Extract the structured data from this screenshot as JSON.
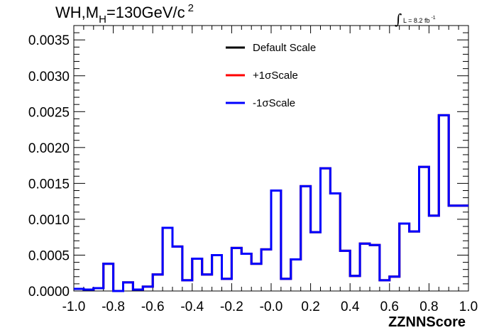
{
  "chart_data": {
    "type": "line",
    "title": {
      "main": "WH,M",
      "sub": "H",
      "rest": "=130GeV/c",
      "sup": "2"
    },
    "luminosity": {
      "symbol": "∫",
      "text": "L = 8.2 fb",
      "sup": "-1"
    },
    "xlabel": "ZZNNScore",
    "ylabel": "",
    "xlim": [
      -1.0,
      1.0
    ],
    "ylim": [
      0,
      0.0037
    ],
    "x_ticks": [
      "-1.0",
      "-0.8",
      "-0.6",
      "-0.4",
      "-0.2",
      "-0.0",
      "0.2",
      "0.4",
      "0.6",
      "0.8",
      "1.0"
    ],
    "y_ticks": [
      "0.0000",
      "0.0005",
      "0.0010",
      "0.0015",
      "0.0020",
      "0.0025",
      "0.0030",
      "0.0035"
    ],
    "bin_edges": [
      -1.0,
      -0.95,
      -0.9,
      -0.85,
      -0.8,
      -0.75,
      -0.7,
      -0.65,
      -0.6,
      -0.55,
      -0.5,
      -0.45,
      -0.4,
      -0.35,
      -0.3,
      -0.25,
      -0.2,
      -0.15,
      -0.1,
      -0.05,
      0.0,
      0.05,
      0.1,
      0.15,
      0.2,
      0.25,
      0.3,
      0.35,
      0.4,
      0.45,
      0.5,
      0.55,
      0.6,
      0.65,
      0.7,
      0.75,
      0.8,
      0.85,
      0.9,
      0.95,
      1.0
    ],
    "series": [
      {
        "name": "Default Scale",
        "color": "#000000",
        "values": [
          3e-05,
          2e-05,
          4e-05,
          0.00038,
          0.0,
          0.00012,
          2e-05,
          6e-05,
          0.00023,
          0.00088,
          0.00062,
          0.00015,
          0.00045,
          0.00023,
          0.0005,
          0.00017,
          0.0006,
          0.00052,
          0.00038,
          0.00058,
          0.0014,
          0.00017,
          0.00044,
          0.00146,
          0.00082,
          0.00171,
          0.00136,
          0.00056,
          0.00021,
          0.00066,
          0.00064,
          0.00015,
          0.0002,
          0.00094,
          0.00083,
          0.00173,
          0.00105,
          0.00245,
          0.00119,
          0.00119
        ]
      },
      {
        "name": "+1σScale",
        "color": "#ff0000",
        "values": [
          3e-05,
          2e-05,
          4e-05,
          0.00038,
          0.0,
          0.00012,
          2e-05,
          6e-05,
          0.00023,
          0.00088,
          0.00062,
          0.00015,
          0.00045,
          0.00023,
          0.0005,
          0.00017,
          0.0006,
          0.00052,
          0.00038,
          0.00058,
          0.0014,
          0.00017,
          0.00044,
          0.00146,
          0.00082,
          0.00171,
          0.00136,
          0.00056,
          0.00021,
          0.00066,
          0.00064,
          0.00015,
          0.0002,
          0.00094,
          0.00083,
          0.00173,
          0.00105,
          0.00245,
          0.00119,
          0.00119
        ]
      },
      {
        "name": "-1σScale",
        "color": "#0000ff",
        "values": [
          3e-05,
          2e-05,
          4e-05,
          0.00038,
          0.0,
          0.00012,
          2e-05,
          6e-05,
          0.00023,
          0.00088,
          0.00062,
          0.00015,
          0.00045,
          0.00023,
          0.0005,
          0.00017,
          0.0006,
          0.00052,
          0.00038,
          0.00058,
          0.0014,
          0.00017,
          0.00044,
          0.00146,
          0.00082,
          0.00171,
          0.00136,
          0.00056,
          0.00021,
          0.00066,
          0.00064,
          0.00015,
          0.0002,
          0.00094,
          0.00083,
          0.00173,
          0.00105,
          0.00245,
          0.00119,
          0.00119
        ]
      }
    ],
    "legend": {
      "placement": "top-center",
      "entries": [
        "Default Scale",
        "+1σScale",
        "-1σScale"
      ]
    },
    "grid": false
  }
}
